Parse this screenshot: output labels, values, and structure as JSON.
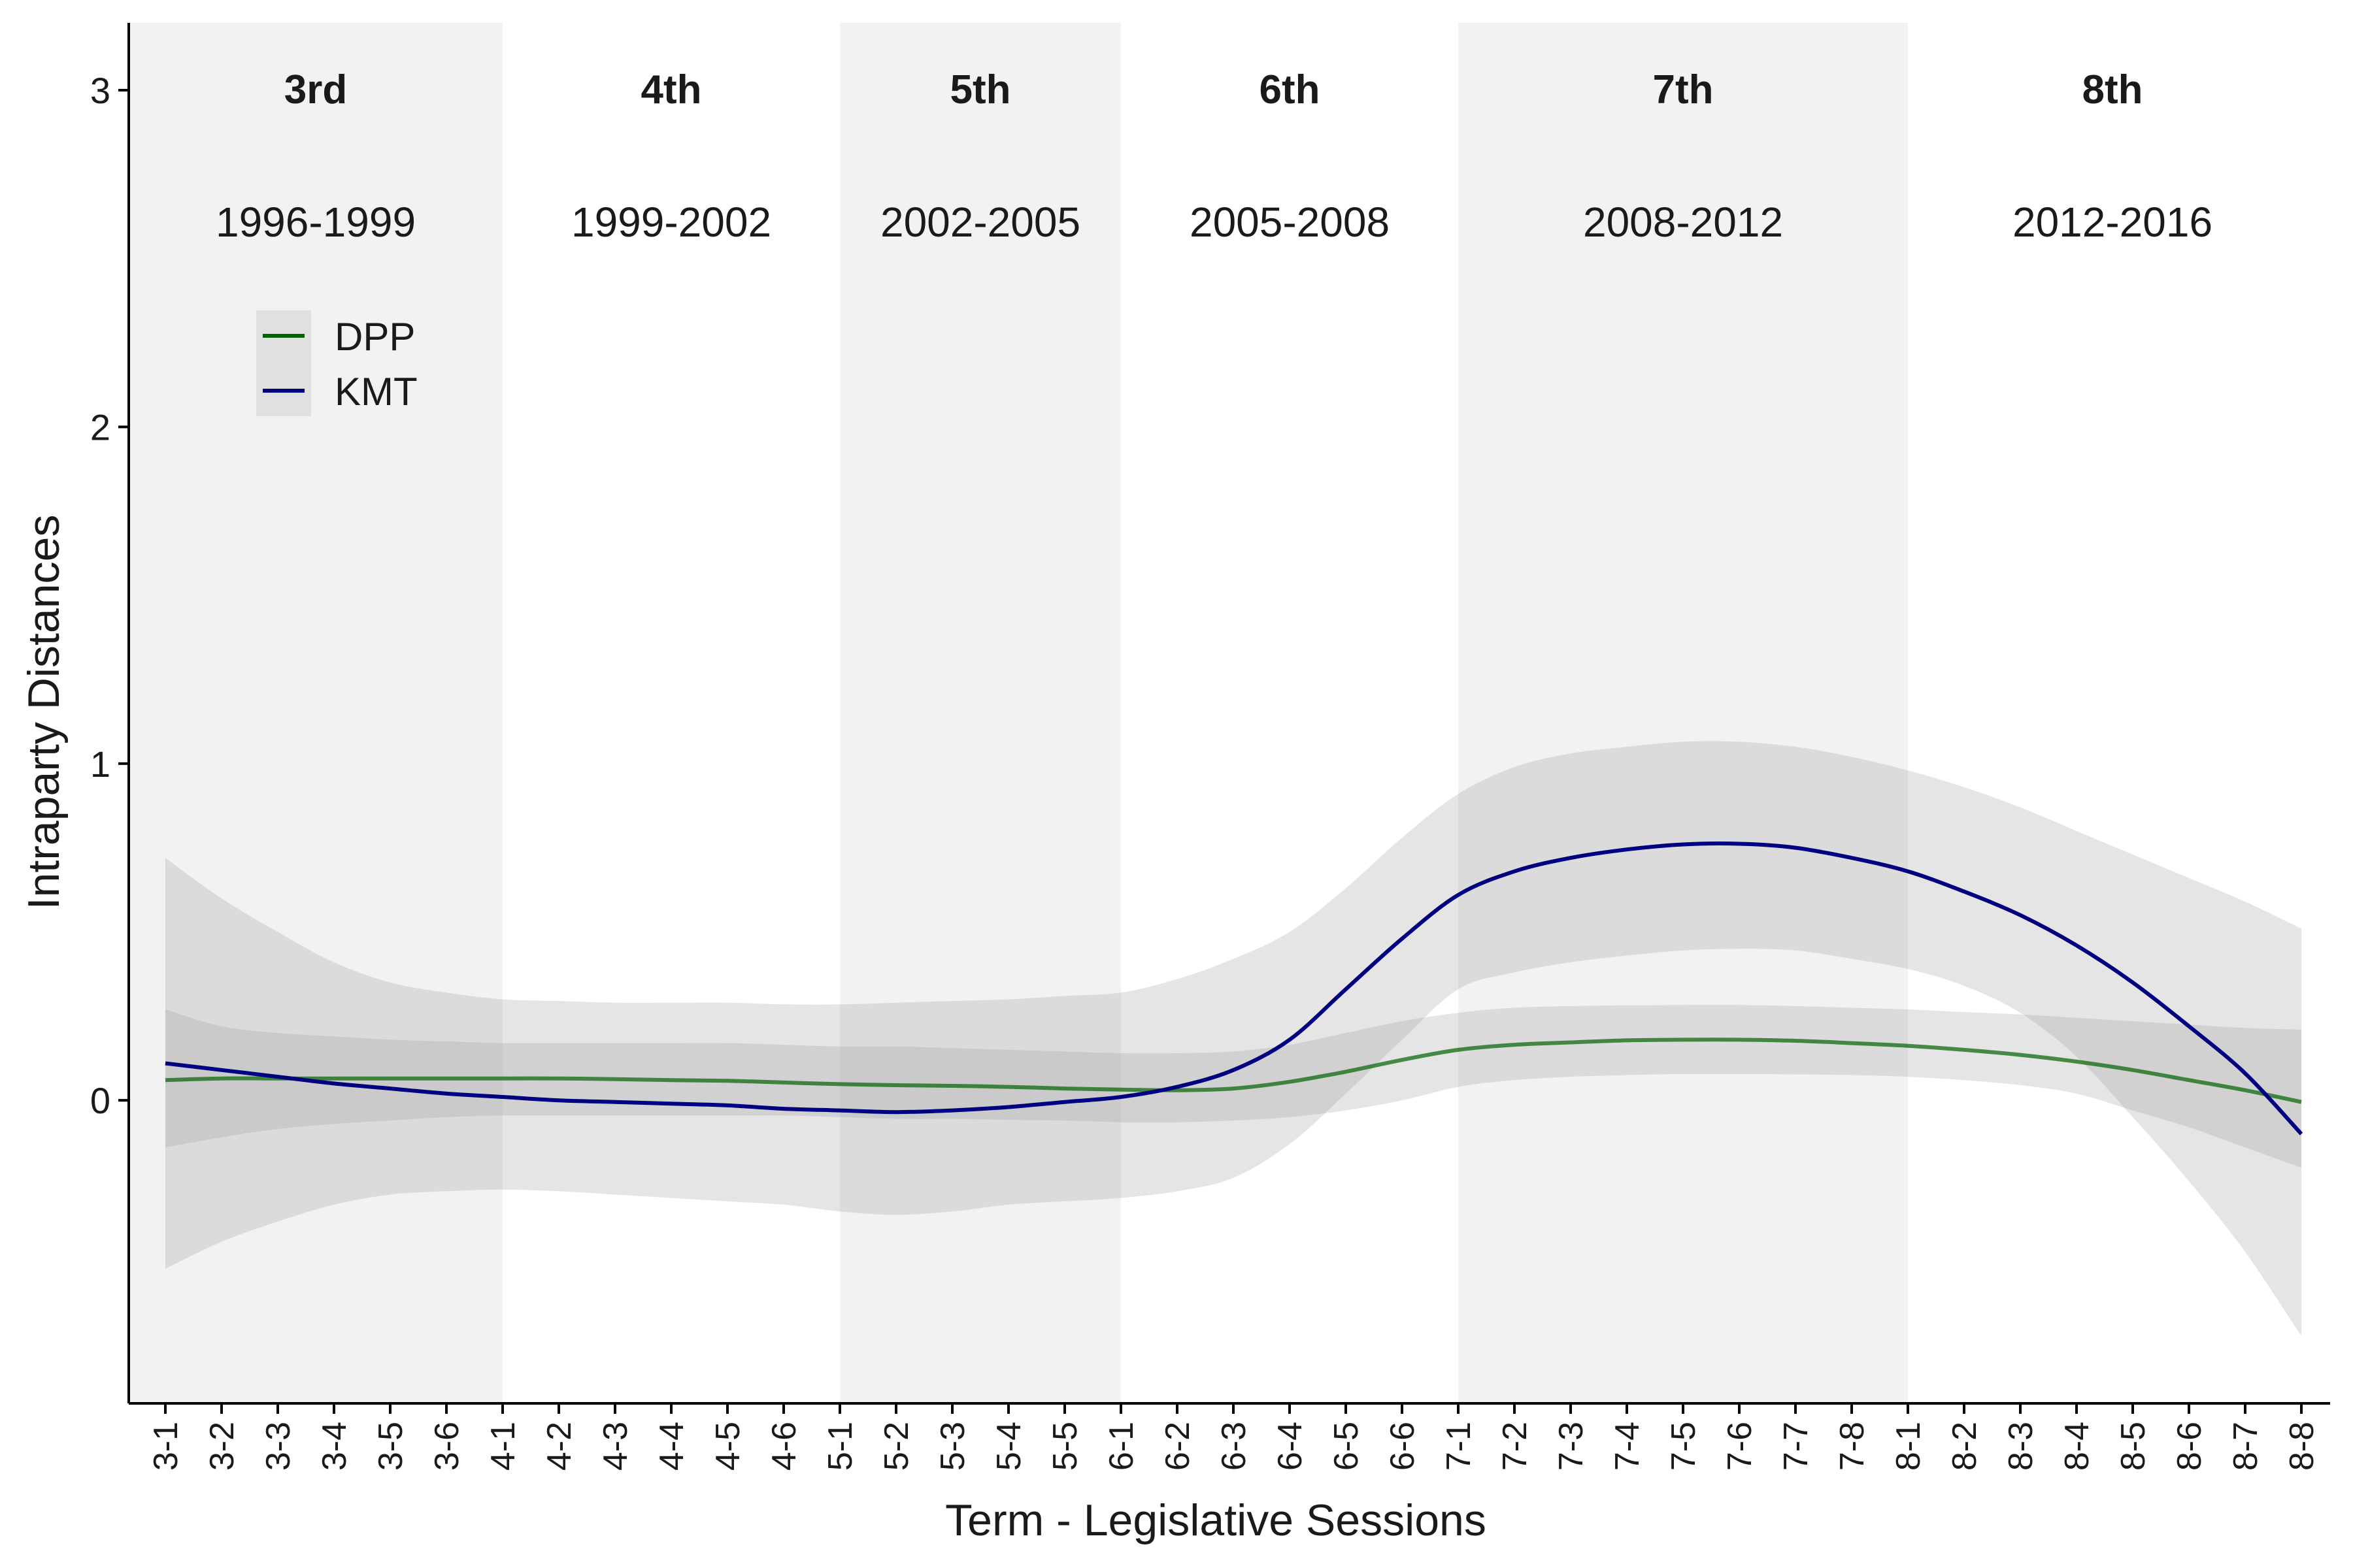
{
  "chart_data": {
    "type": "line",
    "xlabel": "Term - Legislative Sessions",
    "ylabel": "Intraparty Distances",
    "ylim": [
      -0.9,
      3.2
    ],
    "yticks": [
      0,
      1,
      2,
      3
    ],
    "grid": false,
    "legend_position": "top-left",
    "categories": [
      "3-1",
      "3-2",
      "3-3",
      "3-4",
      "3-5",
      "3-6",
      "4-1",
      "4-2",
      "4-3",
      "4-4",
      "4-5",
      "4-6",
      "5-1",
      "5-2",
      "5-3",
      "5-4",
      "5-5",
      "6-1",
      "6-2",
      "6-3",
      "6-4",
      "6-5",
      "6-6",
      "7-1",
      "7-2",
      "7-3",
      "7-4",
      "7-5",
      "7-6",
      "7-7",
      "7-8",
      "8-1",
      "8-2",
      "8-3",
      "8-4",
      "8-5",
      "8-6",
      "8-7",
      "8-8"
    ],
    "terms": [
      {
        "label": "3rd",
        "years": "1996-1999",
        "start": "3-1",
        "end": "4-1",
        "shaded": true
      },
      {
        "label": "4th",
        "years": "1999-2002",
        "start": "4-1",
        "end": "5-1",
        "shaded": false
      },
      {
        "label": "5th",
        "years": "2002-2005",
        "start": "5-1",
        "end": "6-1",
        "shaded": true
      },
      {
        "label": "6th",
        "years": "2005-2008",
        "start": "6-1",
        "end": "7-1",
        "shaded": false
      },
      {
        "label": "7th",
        "years": "2008-2012",
        "start": "7-1",
        "end": "8-1",
        "shaded": true
      },
      {
        "label": "8th",
        "years": "2012-2016",
        "start": "8-1",
        "end": "8-8",
        "shaded": false
      }
    ],
    "series": [
      {
        "name": "DPP",
        "color": "#006400",
        "values": [
          0.06,
          0.065,
          0.065,
          0.065,
          0.065,
          0.065,
          0.065,
          0.065,
          0.063,
          0.06,
          0.058,
          0.053,
          0.048,
          0.045,
          0.043,
          0.04,
          0.035,
          0.032,
          0.03,
          0.035,
          0.055,
          0.085,
          0.12,
          0.15,
          0.165,
          0.172,
          0.178,
          0.18,
          0.18,
          0.177,
          0.17,
          0.162,
          0.15,
          0.135,
          0.115,
          0.09,
          0.06,
          0.03,
          -0.005
        ],
        "ci_lower": [
          -0.14,
          -0.11,
          -0.085,
          -0.07,
          -0.06,
          -0.05,
          -0.045,
          -0.045,
          -0.045,
          -0.045,
          -0.045,
          -0.045,
          -0.05,
          -0.055,
          -0.055,
          -0.058,
          -0.06,
          -0.065,
          -0.065,
          -0.06,
          -0.05,
          -0.03,
          0.0,
          0.04,
          0.06,
          0.07,
          0.075,
          0.078,
          0.078,
          0.077,
          0.075,
          0.07,
          0.06,
          0.045,
          0.02,
          -0.03,
          -0.08,
          -0.14,
          -0.2
        ],
        "ci_upper": [
          0.27,
          0.22,
          0.2,
          0.19,
          0.18,
          0.175,
          0.17,
          0.17,
          0.17,
          0.17,
          0.17,
          0.165,
          0.16,
          0.16,
          0.155,
          0.15,
          0.145,
          0.14,
          0.14,
          0.145,
          0.165,
          0.2,
          0.235,
          0.26,
          0.275,
          0.28,
          0.282,
          0.283,
          0.283,
          0.28,
          0.275,
          0.27,
          0.262,
          0.255,
          0.245,
          0.235,
          0.225,
          0.215,
          0.21
        ]
      },
      {
        "name": "KMT",
        "color": "#000080",
        "values": [
          0.11,
          0.09,
          0.07,
          0.05,
          0.035,
          0.02,
          0.01,
          0.0,
          -0.005,
          -0.01,
          -0.015,
          -0.025,
          -0.03,
          -0.035,
          -0.03,
          -0.02,
          -0.005,
          0.01,
          0.04,
          0.09,
          0.18,
          0.33,
          0.48,
          0.61,
          0.68,
          0.72,
          0.745,
          0.76,
          0.762,
          0.75,
          0.72,
          0.68,
          0.62,
          0.55,
          0.46,
          0.35,
          0.22,
          0.08,
          -0.1
        ],
        "ci_lower": [
          -0.5,
          -0.42,
          -0.36,
          -0.31,
          -0.28,
          -0.27,
          -0.265,
          -0.27,
          -0.28,
          -0.29,
          -0.3,
          -0.31,
          -0.33,
          -0.34,
          -0.33,
          -0.31,
          -0.3,
          -0.29,
          -0.27,
          -0.23,
          -0.13,
          0.02,
          0.18,
          0.33,
          0.38,
          0.41,
          0.43,
          0.445,
          0.45,
          0.445,
          0.42,
          0.39,
          0.34,
          0.26,
          0.13,
          -0.05,
          -0.24,
          -0.45,
          -0.7
        ],
        "ci_upper": [
          0.72,
          0.6,
          0.5,
          0.41,
          0.35,
          0.32,
          0.3,
          0.295,
          0.29,
          0.29,
          0.29,
          0.285,
          0.285,
          0.29,
          0.295,
          0.3,
          0.31,
          0.32,
          0.36,
          0.42,
          0.5,
          0.63,
          0.78,
          0.91,
          0.99,
          1.03,
          1.05,
          1.065,
          1.065,
          1.05,
          1.02,
          0.98,
          0.93,
          0.87,
          0.8,
          0.73,
          0.66,
          0.59,
          0.51
        ]
      }
    ]
  }
}
